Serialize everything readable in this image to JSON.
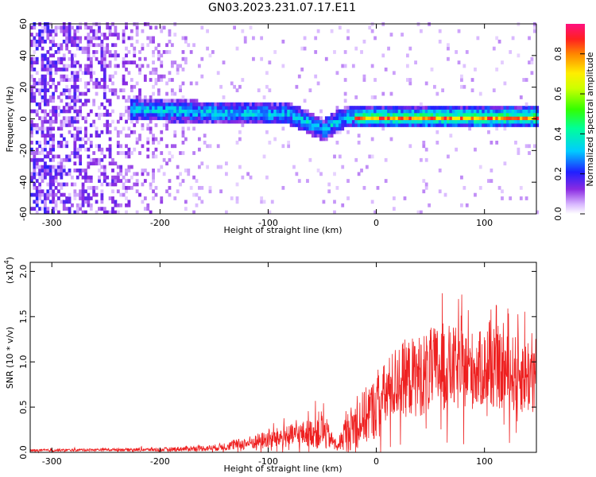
{
  "figure_title": "GN03.2023.231.07.17.E11",
  "chart_data": [
    {
      "type": "heatmap",
      "xlabel": "Height of straight line (km)",
      "ylabel": "Frequency (Hz)",
      "xlim": [
        -320,
        148
      ],
      "ylim": [
        -60,
        60
      ],
      "xticks": [
        -300,
        -200,
        -100,
        0,
        100
      ],
      "yticks": [
        -60,
        -40,
        -20,
        0,
        20,
        40,
        60
      ],
      "colorbar": {
        "label": "Normalized spectral amplitude",
        "ticks": [
          0.0,
          0.2,
          0.4,
          0.6,
          0.8
        ],
        "range": [
          0,
          0.95
        ]
      },
      "features": {
        "noise_region_x": [
          -320,
          -160
        ],
        "signal_band_start_x": -228,
        "signal_band_center_hz": [
          [
            -228,
            5
          ],
          [
            -150,
            3
          ],
          [
            -80,
            2
          ],
          [
            -50,
            -8
          ],
          [
            -30,
            0
          ],
          [
            0,
            0
          ],
          [
            148,
            0
          ]
        ],
        "signal_band_halfwidth_hz": 5,
        "peak_amplitude_region_x": [
          -20,
          148
        ]
      }
    },
    {
      "type": "line",
      "xlabel": "Height of straight line (km)",
      "ylabel": "SNR (10 * v/v)",
      "y_multiplier": "(x10",
      "y_multiplier_exp": "4",
      "xlim": [
        -320,
        148
      ],
      "ylim": [
        0,
        2.1
      ],
      "xticks": [
        -300,
        -200,
        -100,
        0,
        100
      ],
      "yticks": [
        0.0,
        0.5,
        1.0,
        1.5,
        2.0
      ],
      "series": [
        {
          "color": "#ee2020",
          "envelope": {
            "x": [
              -320,
              -250,
              -200,
              -150,
              -120,
              -100,
              -80,
              -60,
              -50,
              -40,
              -35,
              -30,
              -20,
              -10,
              0,
              10,
              20,
              40,
              60,
              80,
              100,
              120,
              148
            ],
            "mean": [
              0.02,
              0.03,
              0.03,
              0.05,
              0.1,
              0.14,
              0.18,
              0.22,
              0.25,
              0.12,
              0.06,
              0.2,
              0.3,
              0.4,
              0.5,
              0.65,
              0.8,
              0.85,
              0.95,
              0.9,
              0.92,
              0.88,
              0.85
            ],
            "amp": [
              0.02,
              0.02,
              0.03,
              0.05,
              0.1,
              0.15,
              0.18,
              0.22,
              0.35,
              0.1,
              0.05,
              0.25,
              0.4,
              0.45,
              0.5,
              0.55,
              0.6,
              0.65,
              0.7,
              0.65,
              0.6,
              0.6,
              0.65
            ]
          }
        }
      ]
    }
  ]
}
